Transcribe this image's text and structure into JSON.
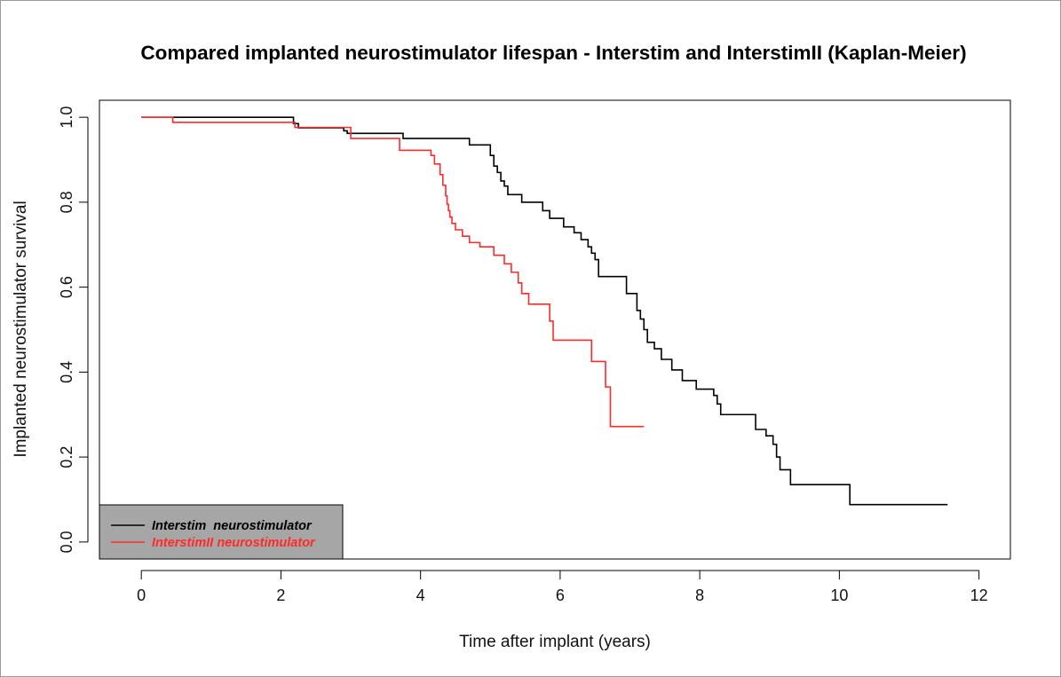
{
  "chart_data": {
    "type": "line",
    "title": "Compared implanted neurostimulator lifespan - Interstim  and InterstimII (Kaplan-Meier)",
    "xlabel": "Time after implant (years)",
    "ylabel": "Implanted neurostimulator survival",
    "xlim": [
      -0.6,
      12.45
    ],
    "ylim": [
      -0.04,
      1.04
    ],
    "x_ticks": [
      0,
      2,
      4,
      6,
      8,
      10,
      12
    ],
    "x_tick_labels": [
      "0",
      "2",
      "4",
      "6",
      "8",
      "10",
      "12"
    ],
    "y_ticks": [
      0.0,
      0.2,
      0.4,
      0.6,
      0.8,
      1.0
    ],
    "y_tick_labels": [
      "0.0",
      "0.2",
      "0.4",
      "0.6",
      "0.8",
      "1.0"
    ],
    "grid": false,
    "legend_position": "bottom-left",
    "step": "post",
    "series": [
      {
        "name": "Interstim  neurostimulator",
        "color": "#000000",
        "x": [
          0,
          2.18,
          2.25,
          2.9,
          2.95,
          3.0,
          3.75,
          4.7,
          5.0,
          5.05,
          5.1,
          5.15,
          5.2,
          5.25,
          5.3,
          5.45,
          5.75,
          5.85,
          6.05,
          6.2,
          6.3,
          6.4,
          6.45,
          6.5,
          6.55,
          6.95,
          7.1,
          7.15,
          7.2,
          7.25,
          7.35,
          7.45,
          7.6,
          7.75,
          7.95,
          8.2,
          8.25,
          8.3,
          8.4,
          8.45,
          8.8,
          8.95,
          9.05,
          9.1,
          9.15,
          9.3,
          10.15,
          11.55
        ],
        "y": [
          1.0,
          0.985,
          0.975,
          0.968,
          0.962,
          0.962,
          0.95,
          0.935,
          0.91,
          0.885,
          0.87,
          0.85,
          0.838,
          0.818,
          0.818,
          0.8,
          0.78,
          0.762,
          0.742,
          0.728,
          0.712,
          0.695,
          0.68,
          0.665,
          0.625,
          0.585,
          0.545,
          0.525,
          0.5,
          0.47,
          0.455,
          0.43,
          0.405,
          0.38,
          0.36,
          0.345,
          0.325,
          0.3,
          0.3,
          0.3,
          0.265,
          0.25,
          0.23,
          0.2,
          0.17,
          0.135,
          0.088,
          0.088
        ]
      },
      {
        "name": "InterstimII neurostimulator",
        "color": "#ff2a2a",
        "x": [
          0,
          0.45,
          2.2,
          3.0,
          3.7,
          4.15,
          4.2,
          4.28,
          4.32,
          4.36,
          4.38,
          4.4,
          4.42,
          4.45,
          4.5,
          4.6,
          4.7,
          4.85,
          5.05,
          5.2,
          5.3,
          5.4,
          5.45,
          5.55,
          5.85,
          5.9,
          6.45,
          6.65,
          6.72,
          7.2
        ],
        "y": [
          1.0,
          0.988,
          0.976,
          0.95,
          0.922,
          0.91,
          0.89,
          0.865,
          0.84,
          0.815,
          0.795,
          0.78,
          0.765,
          0.75,
          0.735,
          0.72,
          0.705,
          0.695,
          0.675,
          0.655,
          0.635,
          0.61,
          0.585,
          0.56,
          0.52,
          0.475,
          0.425,
          0.365,
          0.272,
          0.272
        ]
      }
    ]
  }
}
